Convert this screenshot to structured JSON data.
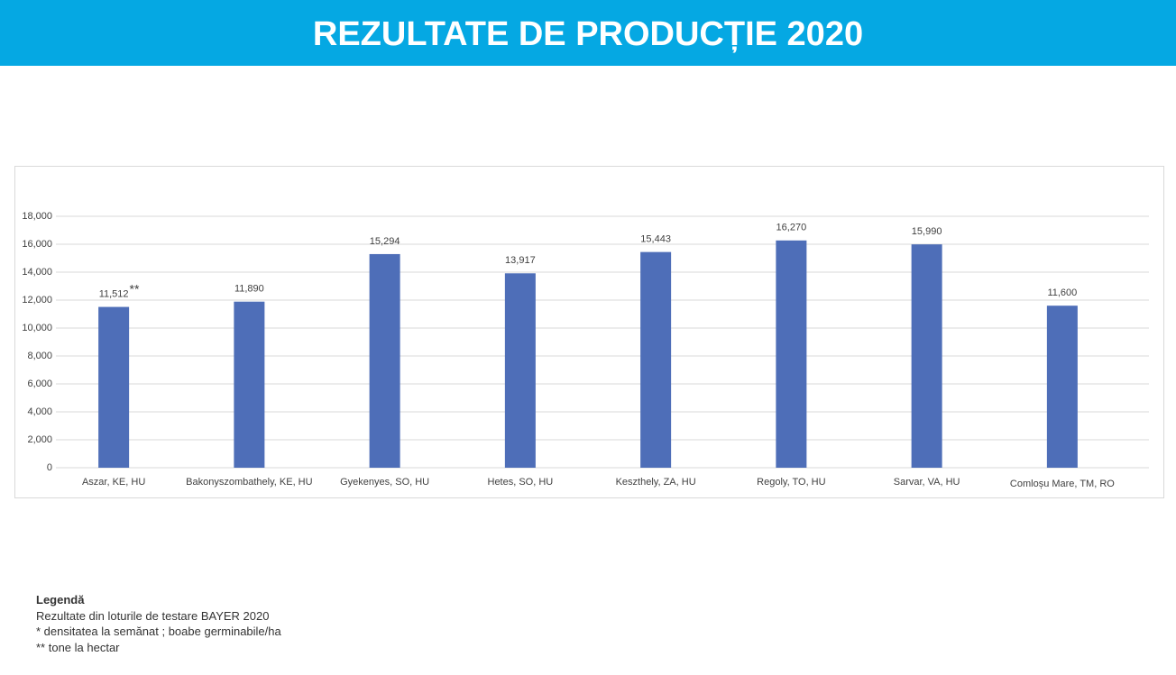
{
  "header": {
    "title": "REZULTATE DE PRODUCȚIE 2020"
  },
  "chart_data": {
    "type": "bar",
    "categories": [
      "Aszar, KE, HU",
      "Bakonyszombathely, KE, HU",
      "Gyekenyes, SO, HU",
      "Hetes, SO, HU",
      "Keszthely, ZA, HU",
      "Regoly, TO, HU",
      "Sarvar, VA, HU",
      "Comloșu Mare, TM, RO"
    ],
    "values": [
      11512,
      11890,
      15294,
      13917,
      15443,
      16270,
      15990,
      11600
    ],
    "value_labels": [
      "11,512",
      "11,890",
      "15,294",
      "13,917",
      "15,443",
      "16,270",
      "15,990",
      "11,600"
    ],
    "annotation": "**",
    "color": "#4e6eb8",
    "ylim": [
      0,
      18000
    ],
    "yticks": [
      0,
      {
        "value": 2000,
        "label": "2,000"
      },
      {
        "value": 4000,
        "label": "4,000"
      },
      {
        "value": 6000,
        "label": "6,000"
      },
      {
        "value": 8000,
        "label": "8,000"
      },
      {
        "value": 10000,
        "label": "10,000"
      },
      {
        "value": 12000,
        "label": "12,000"
      },
      {
        "value": 14000,
        "label": "14,000"
      },
      {
        "value": 16000,
        "label": "16,000"
      },
      {
        "value": 18000,
        "label": "18,000"
      }
    ],
    "grid": true
  },
  "legend": {
    "title": "Legendă",
    "lines": [
      "Rezultate din loturile de testare BAYER 2020",
      "* densitatea la semănat ; boabe germinabile/ha",
      "** tone la hectar"
    ]
  }
}
